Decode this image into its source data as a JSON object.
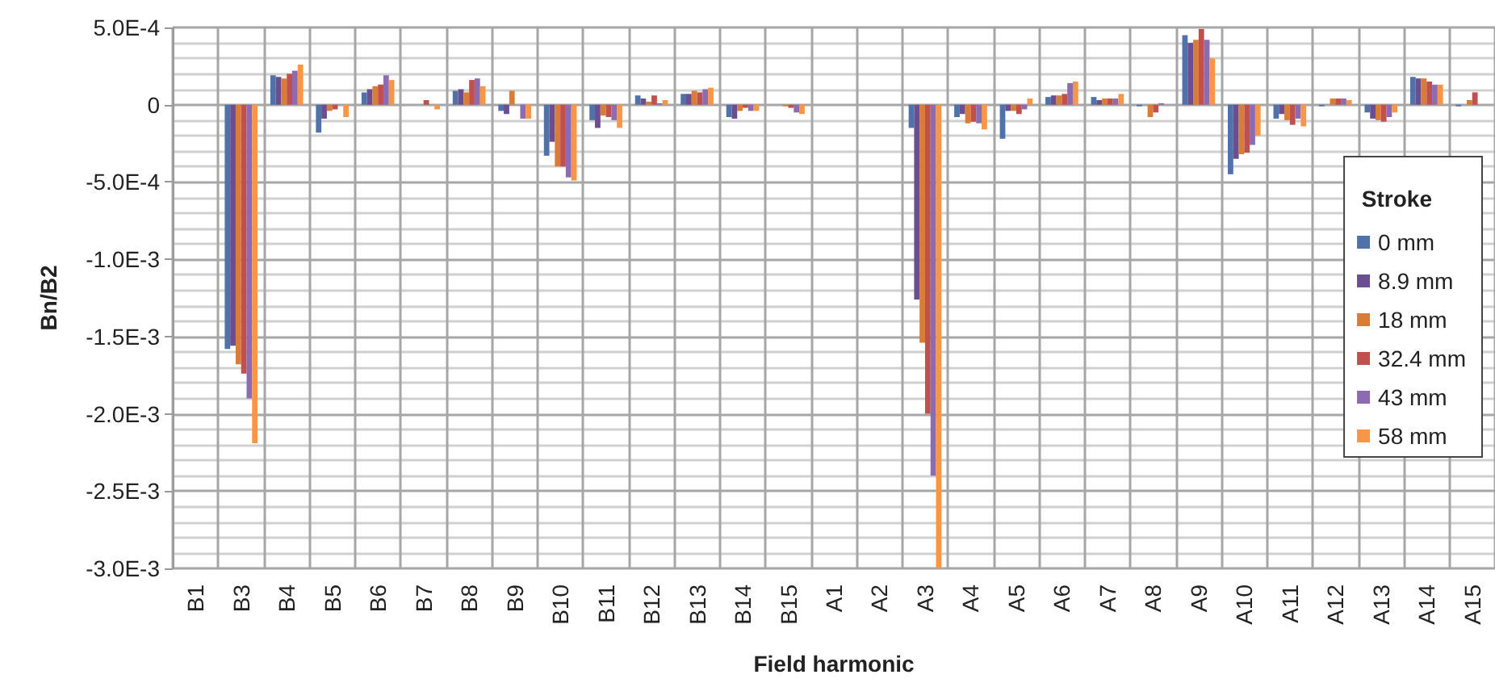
{
  "chart_data": {
    "type": "bar",
    "xlabel": "Field harmonic",
    "ylabel": "Bn/B2",
    "legend_title": "Stroke",
    "legend": "right",
    "grid": true,
    "categories": [
      "B1",
      "B3",
      "B4",
      "B5",
      "B6",
      "B7",
      "B8",
      "B9",
      "B10",
      "B11",
      "B12",
      "B13",
      "B14",
      "B15",
      "A1",
      "A2",
      "A3",
      "A4",
      "A5",
      "A6",
      "A7",
      "A8",
      "A9",
      "A10",
      "A11",
      "A12",
      "A13",
      "A14",
      "A15"
    ],
    "ylim": [
      -0.003,
      0.0005
    ],
    "yticks": [
      {
        "value": -0.003,
        "label": "-3.0E-3"
      },
      {
        "value": -0.0025,
        "label": "-2.5E-3"
      },
      {
        "value": -0.002,
        "label": "-2.0E-3"
      },
      {
        "value": -0.0015,
        "label": "-1.5E-3"
      },
      {
        "value": -0.001,
        "label": "-1.0E-3"
      },
      {
        "value": -0.0005,
        "label": "-5.0E-4"
      },
      {
        "value": 0,
        "label": "0"
      },
      {
        "value": 0.0005,
        "label": "5.0E-4"
      }
    ],
    "series": [
      {
        "name": "0 mm",
        "color": "#4f72a8",
        "values": [
          0,
          -0.00158,
          0.00019,
          -0.00018,
          8e-05,
          0,
          9e-05,
          -4e-05,
          -0.00033,
          -0.0001,
          6e-05,
          7e-05,
          -8e-05,
          0,
          0,
          0,
          -0.00015,
          -8e-05,
          -0.00022,
          5e-05,
          5e-05,
          -1e-05,
          0.00045,
          -0.00045,
          -9e-05,
          -1e-05,
          -5e-05,
          0.00018,
          -1e-05
        ]
      },
      {
        "name": "8.9 mm",
        "color": "#6a4e8f",
        "values": [
          0,
          -0.00156,
          0.00018,
          -9e-05,
          0.0001,
          0,
          0.0001,
          -6e-05,
          -0.00024,
          -0.00015,
          4e-05,
          7e-05,
          -9e-05,
          0,
          0,
          0,
          -0.00126,
          -6e-05,
          -4e-05,
          6e-05,
          3e-05,
          0,
          0.0004,
          -0.00035,
          -6e-05,
          0,
          -9e-05,
          0.00017,
          0
        ]
      },
      {
        "name": "18 mm",
        "color": "#d97c35",
        "values": [
          0,
          -0.00168,
          0.00017,
          -4e-05,
          0.00012,
          0,
          8e-05,
          9e-05,
          -0.0004,
          -7e-05,
          2e-05,
          9e-05,
          -4e-05,
          -1e-05,
          0,
          0,
          -0.00154,
          -0.00012,
          -4e-05,
          6e-05,
          4e-05,
          -8e-05,
          0.00042,
          -0.00032,
          -0.0001,
          4e-05,
          -0.0001,
          0.00017,
          3e-05
        ]
      },
      {
        "name": "32.4 mm",
        "color": "#c0504d",
        "values": [
          0,
          -0.00174,
          0.0002,
          -3e-05,
          0.00013,
          3e-05,
          0.00016,
          0,
          -0.0004,
          -8e-05,
          6e-05,
          8e-05,
          -2e-05,
          -2e-05,
          0,
          0,
          -0.002,
          -0.00011,
          -6e-05,
          7e-05,
          4e-05,
          -5e-05,
          0.00049,
          -0.00031,
          -0.00013,
          4e-05,
          -0.00011,
          0.00015,
          8e-05
        ]
      },
      {
        "name": "43 mm",
        "color": "#8c6bb1",
        "values": [
          0,
          -0.0019,
          0.00022,
          0,
          0.00019,
          0,
          0.00017,
          -9e-05,
          -0.00047,
          -0.0001,
          1e-05,
          0.0001,
          -4e-05,
          -5e-05,
          0,
          0,
          -0.0024,
          -0.00012,
          -3e-05,
          0.00014,
          4e-05,
          1e-05,
          0.00042,
          -0.00026,
          -9e-05,
          4e-05,
          -8e-05,
          0.00013,
          null
        ]
      },
      {
        "name": "58 mm",
        "color": "#f79646",
        "values": [
          0,
          -0.00219,
          0.00026,
          -8e-05,
          0.00016,
          -3e-05,
          0.00012,
          -9e-05,
          -0.00049,
          -0.00015,
          3e-05,
          0.00011,
          -4e-05,
          -6e-05,
          0,
          0,
          -0.003,
          -0.00016,
          4e-05,
          0.00015,
          7e-05,
          0,
          0.0003,
          -0.0002,
          -0.00014,
          3e-05,
          -5e-05,
          0.00013,
          null
        ]
      }
    ]
  }
}
